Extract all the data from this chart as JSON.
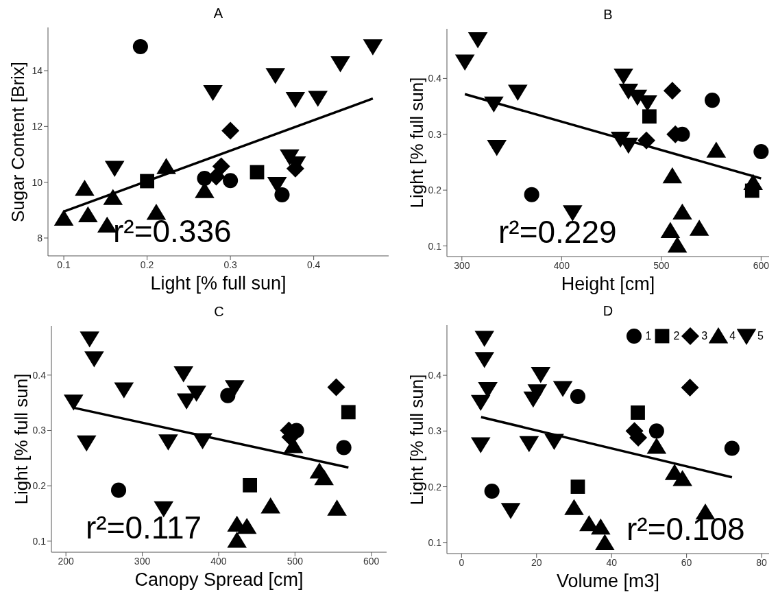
{
  "chart_data": [
    {
      "type": "scatter",
      "title": "A",
      "xlabel": "Light [% full sun]",
      "ylabel": "Sugar Content [Brix]",
      "xlim": [
        0.081,
        0.49
      ],
      "ylim": [
        7.36,
        15.55
      ],
      "xticks": [
        0.1,
        0.2,
        0.3,
        0.4
      ],
      "yticks": [
        8,
        10,
        12,
        14
      ],
      "grid": false,
      "annotations": [
        "r²=0.336"
      ],
      "series": [
        {
          "color": "#000000",
          "marker": "circle",
          "x": [
            0.192,
            0.269,
            0.3,
            0.362
          ],
          "values": [
            14.86,
            10.14,
            10.06,
            9.55
          ]
        },
        {
          "color": "#000000",
          "marker": "square",
          "x": [
            0.2,
            0.332
          ],
          "values": [
            10.04,
            10.36
          ]
        },
        {
          "color": "#000000",
          "marker": "diamond",
          "x": [
            0.3,
            0.289,
            0.283,
            0.378
          ],
          "values": [
            11.85,
            10.57,
            10.2,
            10.49
          ]
        },
        {
          "color": "#000000",
          "marker": "triangle",
          "x": [
            0.1,
            0.125,
            0.129,
            0.159,
            0.152,
            0.211,
            0.223,
            0.269
          ],
          "values": [
            8.7,
            9.77,
            8.82,
            9.44,
            8.45,
            8.91,
            10.55,
            9.69
          ]
        },
        {
          "color": "#000000",
          "marker": "triangle-down",
          "x": [
            0.161,
            0.279,
            0.354,
            0.378,
            0.405,
            0.432,
            0.471,
            0.371,
            0.379,
            0.356
          ],
          "values": [
            10.51,
            13.23,
            13.84,
            12.98,
            13.02,
            14.26,
            14.87,
            10.92,
            10.67,
            9.93
          ]
        },
        {
          "type": "line",
          "color": "#000000",
          "marker": "none",
          "x": [
            0.1,
            0.471
          ],
          "values": [
            8.95,
            13.0
          ]
        }
      ]
    },
    {
      "type": "scatter",
      "title": "B",
      "xlabel": "Height [cm]",
      "ylabel": "Light [% full sun]",
      "xlim": [
        285,
        608
      ],
      "ylim": [
        0.081,
        0.489
      ],
      "xticks": [
        300,
        400,
        500,
        600
      ],
      "yticks": [
        0.1,
        0.2,
        0.3,
        0.4
      ],
      "grid": false,
      "annotations": [
        "r²=0.229"
      ],
      "series": [
        {
          "color": "#000000",
          "marker": "circle",
          "x": [
            370,
            551,
            521,
            600
          ],
          "values": [
            0.192,
            0.361,
            0.3,
            0.269
          ]
        },
        {
          "color": "#000000",
          "marker": "square",
          "x": [
            488,
            591
          ],
          "values": [
            0.332,
            0.199
          ]
        },
        {
          "color": "#000000",
          "marker": "diamond",
          "x": [
            511,
            514,
            485
          ],
          "values": [
            0.378,
            0.3,
            0.289
          ]
        },
        {
          "color": "#000000",
          "marker": "triangle",
          "x": [
            511,
            521,
            509,
            516,
            538,
            555,
            592
          ],
          "values": [
            0.225,
            0.16,
            0.127,
            0.101,
            0.131,
            0.271,
            0.213
          ]
        },
        {
          "color": "#000000",
          "marker": "triangle-down",
          "x": [
            303,
            316,
            356,
            332,
            335,
            411,
            462,
            467,
            476,
            486,
            467,
            459
          ],
          "values": [
            0.43,
            0.47,
            0.376,
            0.355,
            0.277,
            0.16,
            0.405,
            0.378,
            0.367,
            0.357,
            0.281,
            0.292
          ]
        },
        {
          "type": "line",
          "color": "#000000",
          "marker": "none",
          "x": [
            303,
            600
          ],
          "values": [
            0.372,
            0.221
          ]
        }
      ]
    },
    {
      "type": "scatter",
      "title": "C",
      "xlabel": "Canopy Spread [cm]",
      "ylabel": "Light [% full sun]",
      "xlim": [
        181,
        620
      ],
      "ylim": [
        0.08,
        0.489
      ],
      "xticks": [
        200,
        300,
        400,
        500,
        600
      ],
      "yticks": [
        0.1,
        0.2,
        0.3,
        0.4
      ],
      "grid": false,
      "annotations": [
        "r²=0.117"
      ],
      "series": [
        {
          "color": "#000000",
          "marker": "circle",
          "x": [
            269,
            412,
            502,
            564
          ],
          "values": [
            0.192,
            0.363,
            0.3,
            0.269
          ]
        },
        {
          "color": "#000000",
          "marker": "square",
          "x": [
            441,
            570
          ],
          "values": [
            0.201,
            0.333
          ]
        },
        {
          "color": "#000000",
          "marker": "diamond",
          "x": [
            554,
            492,
            494
          ],
          "values": [
            0.378,
            0.3,
            0.288
          ]
        },
        {
          "color": "#000000",
          "marker": "triangle",
          "x": [
            498,
            532,
            538,
            555,
            468,
            424,
            437,
            424
          ],
          "values": [
            0.272,
            0.226,
            0.214,
            0.159,
            0.163,
            0.13,
            0.126,
            0.101
          ]
        },
        {
          "color": "#000000",
          "marker": "triangle-down",
          "x": [
            231,
            237,
            210,
            227,
            276,
            354,
            358,
            371,
            421,
            334,
            379,
            328
          ],
          "values": [
            0.466,
            0.43,
            0.352,
            0.278,
            0.374,
            0.403,
            0.354,
            0.368,
            0.378,
            0.28,
            0.282,
            0.159
          ]
        },
        {
          "type": "line",
          "color": "#000000",
          "marker": "none",
          "x": [
            210,
            570
          ],
          "values": [
            0.341,
            0.233
          ]
        }
      ]
    },
    {
      "type": "scatter",
      "title": "D",
      "xlabel": "Volume [m3]",
      "ylabel": "Light [% full sun]",
      "xlim": [
        -3.9,
        82
      ],
      "ylim": [
        0.08,
        0.49
      ],
      "xticks": [
        0,
        20,
        40,
        60,
        80
      ],
      "yticks": [
        0.1,
        0.2,
        0.3,
        0.4
      ],
      "grid": false,
      "legend": "top right",
      "annotations": [
        "r²=0.108"
      ],
      "series": [
        {
          "name": "1",
          "color": "#000000",
          "marker": "circle",
          "x": [
            8.1,
            31.0,
            52.0,
            72.1
          ],
          "values": [
            0.192,
            0.362,
            0.3,
            0.269
          ]
        },
        {
          "name": "2",
          "color": "#000000",
          "marker": "square",
          "x": [
            47.0,
            31.0
          ],
          "values": [
            0.333,
            0.2
          ]
        },
        {
          "name": "3",
          "color": "#000000",
          "marker": "diamond",
          "x": [
            60.9,
            46.1,
            47.1
          ],
          "values": [
            0.378,
            0.3,
            0.288
          ]
        },
        {
          "name": "4",
          "color": "#000000",
          "marker": "triangle",
          "x": [
            52.0,
            56.8,
            58.9,
            65.0,
            30.0,
            34.0,
            37.1,
            38.2
          ],
          "values": [
            0.272,
            0.225,
            0.214,
            0.154,
            0.162,
            0.133,
            0.127,
            0.099
          ]
        },
        {
          "name": "5",
          "color": "#000000",
          "marker": "triangle-down",
          "x": [
            6.1,
            6.1,
            7.0,
            5.1,
            5.1,
            13.1,
            18.0,
            21.1,
            20.2,
            19.1,
            24.7,
            27.0
          ],
          "values": [
            0.467,
            0.429,
            0.375,
            0.352,
            0.276,
            0.158,
            0.278,
            0.402,
            0.371,
            0.358,
            0.282,
            0.377
          ]
        },
        {
          "type": "line",
          "color": "#000000",
          "marker": "none",
          "x": [
            5.2,
            72.1
          ],
          "values": [
            0.325,
            0.217
          ]
        }
      ]
    }
  ]
}
